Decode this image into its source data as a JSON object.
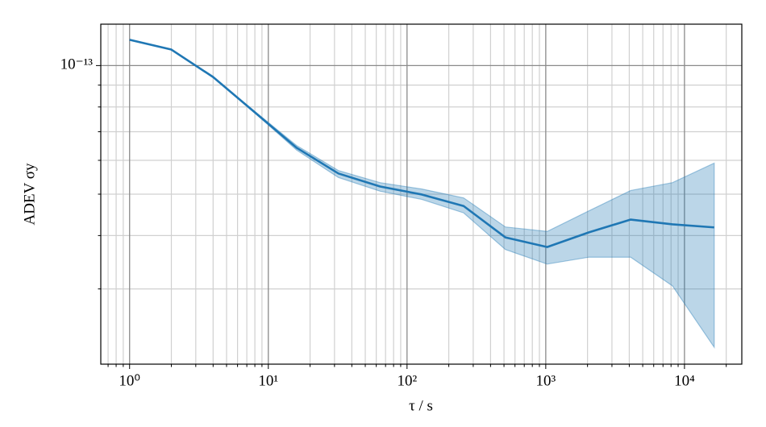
{
  "chart_data": {
    "type": "line",
    "xlabel": "τ / s",
    "ylabel": "ADEV σy",
    "xscale": "log",
    "yscale": "log",
    "grid": "both",
    "x": [
      1,
      2,
      4,
      8,
      16,
      32,
      64,
      128,
      256,
      512,
      1024,
      2048,
      4096,
      8192,
      16384
    ],
    "series": [
      {
        "color": "#1f77b4",
        "band_opacity": 0.3,
        "values": [
          1.149e-13,
          1.09e-13,
          9.4e-14,
          7.77e-14,
          6.42e-14,
          5.59e-14,
          5.21e-14,
          4.99e-14,
          4.69e-14,
          3.96e-14,
          3.76e-14,
          4.07e-14,
          4.36e-14,
          4.25e-14,
          4.18e-14
        ],
        "lower": [
          1.149e-13,
          1.09e-13,
          9.4e-14,
          7.74e-14,
          6.34e-14,
          5.47e-14,
          5.08e-14,
          4.86e-14,
          4.52e-14,
          3.71e-14,
          3.43e-14,
          3.56e-14,
          3.56e-14,
          3.05e-14,
          2.19e-14
        ],
        "upper": [
          1.149e-13,
          1.09e-13,
          9.4e-14,
          7.81e-14,
          6.5e-14,
          5.68e-14,
          5.32e-14,
          5.14e-14,
          4.9e-14,
          4.19e-14,
          4.09e-14,
          4.57e-14,
          5.1e-14,
          5.32e-14,
          5.91e-14
        ]
      }
    ],
    "xlim": [
      0.62,
      25900
    ],
    "ylim": [
      2e-14,
      1.25e-13
    ],
    "xticks": [
      {
        "value": 1,
        "label": "10⁰"
      },
      {
        "value": 10,
        "label": "10¹"
      },
      {
        "value": 100,
        "label": "10²"
      },
      {
        "value": 1000,
        "label": "10³"
      },
      {
        "value": 10000,
        "label": "10⁴"
      }
    ],
    "yticks": [
      {
        "value": 1e-13,
        "label": "10⁻¹³"
      }
    ],
    "xminorticks": [
      0.7,
      0.8,
      0.9,
      2,
      3,
      4,
      5,
      6,
      7,
      8,
      9,
      20,
      30,
      40,
      50,
      60,
      70,
      80,
      90,
      200,
      300,
      400,
      500,
      600,
      700,
      800,
      900,
      2000,
      3000,
      4000,
      5000,
      6000,
      7000,
      8000,
      9000,
      20000
    ],
    "yminorticks": [
      3e-14,
      4e-14,
      5e-14,
      6e-14,
      7e-14,
      8e-14,
      9e-14
    ]
  }
}
